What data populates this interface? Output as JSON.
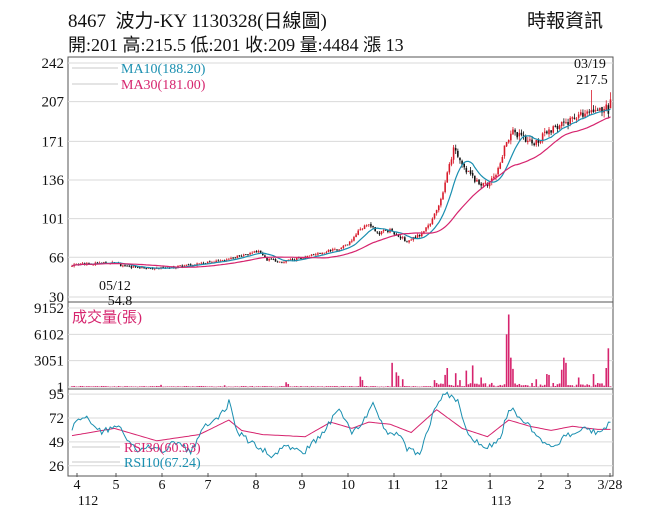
{
  "header": {
    "code": "8467",
    "name": "波力-KY",
    "date_label": "1130328(日線圖)",
    "source": "時報資訊",
    "ohlc": {
      "open_label": "開",
      "open": "201",
      "high_label": "高",
      "high": "215.5",
      "low_label": "低",
      "low": "201",
      "close_label": "收",
      "close": "209",
      "volume_label": "量",
      "volume": "4484",
      "change_label": "漲",
      "change": "13"
    }
  },
  "chart_data": [
    {
      "type": "candlestick",
      "panel": "price",
      "ylim": [
        30,
        242
      ],
      "yticks": [
        "242",
        "207",
        "171",
        "136",
        "101",
        "66",
        "30"
      ],
      "legend": [
        {
          "name": "MA10",
          "value": "(188.20)",
          "color": "#1a8fb0"
        },
        {
          "name": "MA30",
          "value": "(181.00)",
          "color": "#d6246e"
        }
      ],
      "annotations": [
        {
          "date": "05/12",
          "value": "54.8"
        },
        {
          "date": "03/19",
          "value": "217.5"
        }
      ],
      "colors": {
        "up": "#d81b2b",
        "down": "#111111"
      },
      "anchors": [
        [
          0,
          59
        ],
        [
          18,
          61
        ],
        [
          28,
          57
        ],
        [
          38,
          56
        ],
        [
          48,
          57
        ],
        [
          60,
          60
        ],
        [
          70,
          63
        ],
        [
          80,
          68
        ],
        [
          88,
          72
        ],
        [
          92,
          64
        ],
        [
          100,
          62
        ],
        [
          110,
          66
        ],
        [
          118,
          70
        ],
        [
          126,
          74
        ],
        [
          132,
          80
        ],
        [
          136,
          92
        ],
        [
          140,
          96
        ],
        [
          144,
          88
        ],
        [
          150,
          90
        ],
        [
          154,
          86
        ],
        [
          158,
          80
        ],
        [
          164,
          86
        ],
        [
          170,
          100
        ],
        [
          174,
          118
        ],
        [
          178,
          148
        ],
        [
          180,
          166
        ],
        [
          184,
          150
        ],
        [
          188,
          140
        ],
        [
          192,
          132
        ],
        [
          196,
          132
        ],
        [
          200,
          140
        ],
        [
          204,
          166
        ],
        [
          208,
          180
        ],
        [
          212,
          175
        ],
        [
          218,
          170
        ],
        [
          224,
          178
        ],
        [
          230,
          186
        ],
        [
          236,
          190
        ],
        [
          240,
          196
        ],
        [
          244,
          195
        ],
        [
          248,
          200
        ],
        [
          252,
          201
        ],
        [
          254,
          212
        ]
      ]
    },
    {
      "type": "bar",
      "panel": "volume",
      "title": "成交量(張)",
      "ylim": [
        0,
        9152
      ],
      "yticks": [
        "9152",
        "6102",
        "3051",
        "1"
      ],
      "color": "#d6246e",
      "spikes": [
        [
          42,
          250
        ],
        [
          72,
          200
        ],
        [
          101,
          550
        ],
        [
          102,
          350
        ],
        [
          136,
          1200
        ],
        [
          137,
          800
        ],
        [
          151,
          2800
        ],
        [
          153,
          1700
        ],
        [
          154,
          1300
        ],
        [
          156,
          900
        ],
        [
          171,
          800
        ],
        [
          176,
          1400
        ],
        [
          177,
          2200
        ],
        [
          181,
          1600
        ],
        [
          183,
          800
        ],
        [
          186,
          1900
        ],
        [
          189,
          2500
        ],
        [
          193,
          1100
        ],
        [
          205,
          6100
        ],
        [
          206,
          8400
        ],
        [
          207,
          3400
        ],
        [
          208,
          2100
        ],
        [
          219,
          900
        ],
        [
          224,
          1500
        ],
        [
          225,
          1400
        ],
        [
          231,
          2000
        ],
        [
          232,
          3400
        ],
        [
          233,
          2800
        ],
        [
          239,
          1100
        ],
        [
          246,
          1500
        ],
        [
          252,
          2200
        ],
        [
          253,
          4484
        ]
      ]
    },
    {
      "type": "line",
      "panel": "rsi",
      "ylim": [
        20,
        97
      ],
      "yticks": [
        "95",
        "72",
        "49",
        "26"
      ],
      "series": [
        {
          "name": "RSI30",
          "value": "(60.93)",
          "color": "#d6246e",
          "anchors": [
            [
              0,
              55
            ],
            [
              20,
              62
            ],
            [
              40,
              50
            ],
            [
              60,
              56
            ],
            [
              74,
              70
            ],
            [
              80,
              60
            ],
            [
              90,
              56
            ],
            [
              110,
              54
            ],
            [
              122,
              68
            ],
            [
              132,
              62
            ],
            [
              140,
              68
            ],
            [
              150,
              66
            ],
            [
              160,
              58
            ],
            [
              172,
              80
            ],
            [
              184,
              62
            ],
            [
              196,
              54
            ],
            [
              206,
              70
            ],
            [
              216,
              64
            ],
            [
              226,
              60
            ],
            [
              236,
              64
            ],
            [
              248,
              61
            ],
            [
              254,
              61
            ]
          ]
        },
        {
          "name": "RSI10",
          "value": "(67.24)",
          "color": "#1a8fb0",
          "anchors": [
            [
              0,
              62
            ],
            [
              6,
              75
            ],
            [
              14,
              58
            ],
            [
              22,
              66
            ],
            [
              30,
              40
            ],
            [
              38,
              44
            ],
            [
              42,
              40
            ],
            [
              50,
              50
            ],
            [
              56,
              38
            ],
            [
              62,
              64
            ],
            [
              72,
              78
            ],
            [
              74,
              88
            ],
            [
              78,
              58
            ],
            [
              86,
              46
            ],
            [
              94,
              36
            ],
            [
              100,
              44
            ],
            [
              110,
              40
            ],
            [
              120,
              62
            ],
            [
              126,
              82
            ],
            [
              132,
              56
            ],
            [
              138,
              72
            ],
            [
              142,
              86
            ],
            [
              148,
              58
            ],
            [
              154,
              56
            ],
            [
              158,
              42
            ],
            [
              164,
              38
            ],
            [
              172,
              86
            ],
            [
              176,
              96
            ],
            [
              182,
              88
            ],
            [
              186,
              60
            ],
            [
              194,
              42
            ],
            [
              202,
              52
            ],
            [
              206,
              82
            ],
            [
              212,
              72
            ],
            [
              220,
              54
            ],
            [
              226,
              44
            ],
            [
              234,
              56
            ],
            [
              242,
              62
            ],
            [
              248,
              58
            ],
            [
              254,
              67
            ]
          ]
        }
      ]
    }
  ],
  "x_axis": {
    "months": [
      {
        "label": "4",
        "year": "112"
      },
      {
        "label": "5"
      },
      {
        "label": "6"
      },
      {
        "label": "7"
      },
      {
        "label": "8"
      },
      {
        "label": "9"
      },
      {
        "label": "10"
      },
      {
        "label": "11"
      },
      {
        "label": "12"
      },
      {
        "label": "1",
        "year": "113"
      },
      {
        "label": "2"
      },
      {
        "label": "3"
      },
      {
        "label": "3/28"
      }
    ]
  }
}
